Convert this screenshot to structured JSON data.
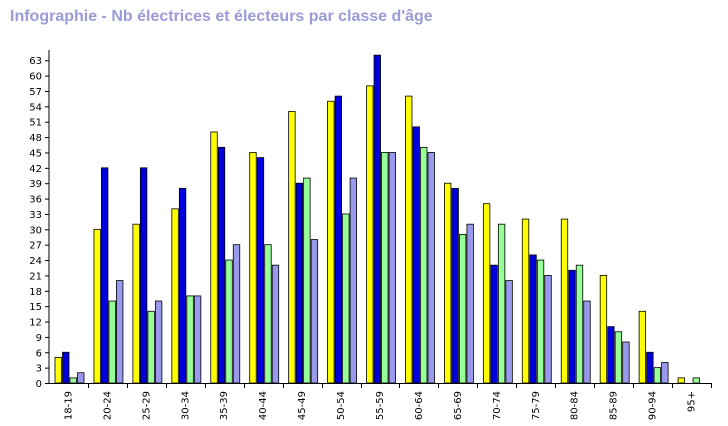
{
  "chart_data": {
    "type": "bar",
    "title": "Infographie - Nb électrices et électeurs par classe d'âge",
    "xlabel": "",
    "ylabel": "",
    "ylim": [
      0,
      65
    ],
    "yticks": [
      0,
      3,
      6,
      9,
      12,
      15,
      18,
      21,
      24,
      27,
      30,
      33,
      36,
      39,
      42,
      45,
      48,
      51,
      54,
      57,
      60,
      63
    ],
    "grid": false,
    "legend": "none",
    "categories": [
      "18-19",
      "20-24",
      "25-29",
      "30-34",
      "35-39",
      "40-44",
      "45-49",
      "50-54",
      "55-59",
      "60-64",
      "65-69",
      "70-74",
      "75-79",
      "80-84",
      "85-89",
      "90-94",
      "95+"
    ],
    "series": [
      {
        "color": "#ffff00",
        "values": [
          5,
          30,
          31,
          34,
          49,
          45,
          53,
          55,
          58,
          56,
          39,
          35,
          32,
          32,
          21,
          14,
          1
        ]
      },
      {
        "color": "#0000dd",
        "values": [
          6,
          42,
          42,
          38,
          46,
          44,
          39,
          56,
          64,
          50,
          38,
          23,
          25,
          22,
          11,
          6,
          0
        ]
      },
      {
        "color": "#99ff99",
        "values": [
          1,
          16,
          14,
          17,
          24,
          27,
          40,
          33,
          45,
          46,
          29,
          31,
          24,
          23,
          10,
          3,
          1
        ]
      },
      {
        "color": "#9999ee",
        "values": [
          2,
          20,
          16,
          17,
          27,
          23,
          28,
          40,
          45,
          45,
          31,
          20,
          21,
          16,
          8,
          4,
          0
        ]
      }
    ]
  }
}
